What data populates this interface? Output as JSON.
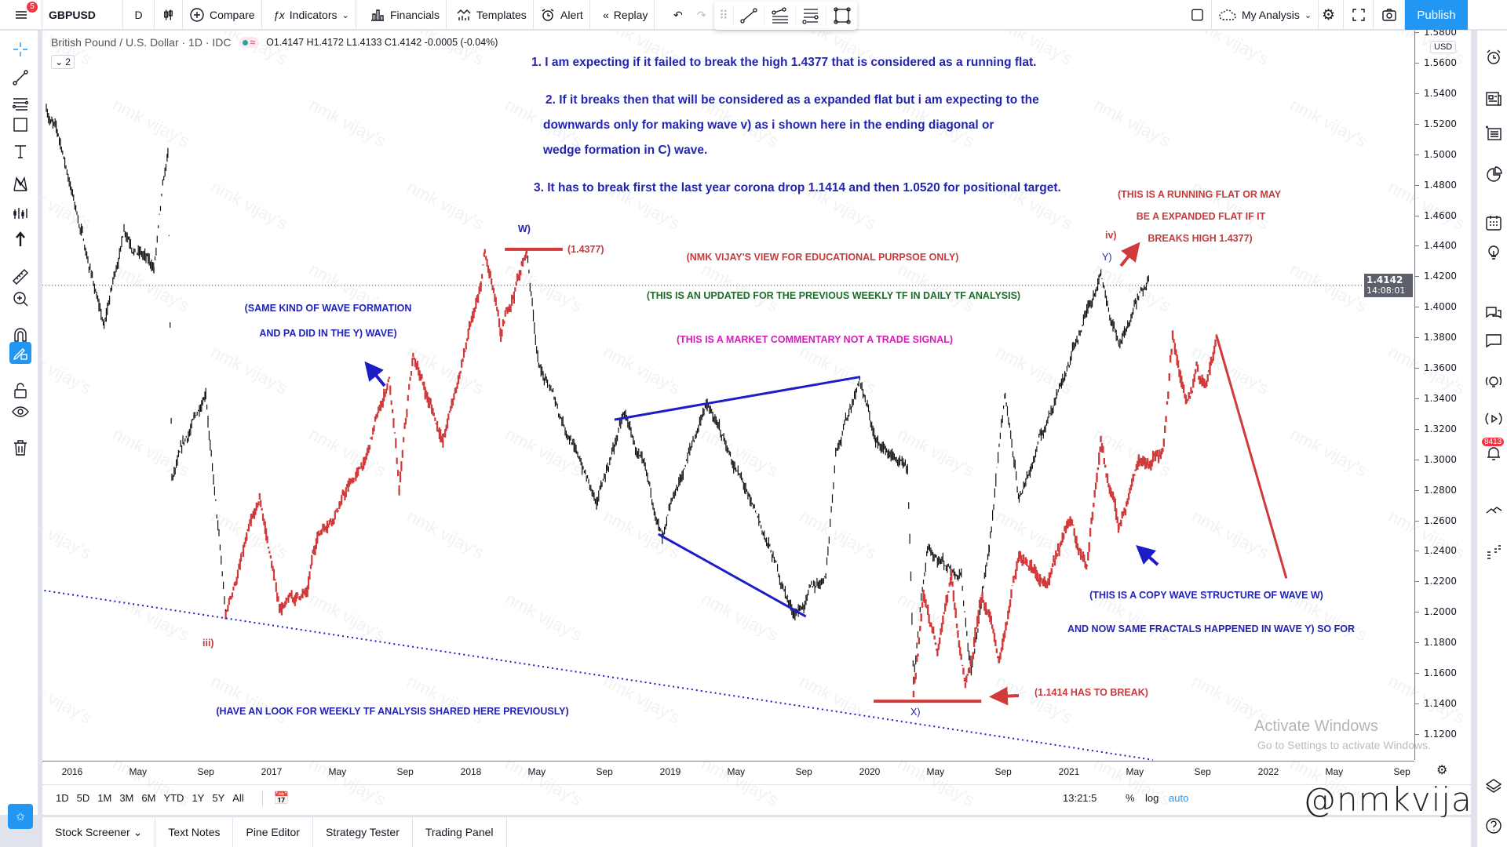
{
  "topbar": {
    "symbol": "GBPUSD",
    "interval": "D",
    "compare": "Compare",
    "indicators": "Indicators",
    "financials": "Financials",
    "templates": "Templates",
    "alert": "Alert",
    "replay": "Replay",
    "layout_name": "My Analysis",
    "publish": "Publish",
    "menu_badge": "5"
  },
  "legend": {
    "title": "British Pound / U.S. Dollar · 1D · IDC",
    "ohlc": "O1.4147 H1.4172 L1.4133 C1.4142 -0.0005 (-0.04%)",
    "collapse": "2"
  },
  "price_axis": {
    "currency": "USD",
    "ticks": [
      "1.5800",
      "1.5600",
      "1.5400",
      "1.5200",
      "1.5000",
      "1.4800",
      "1.4600",
      "1.4400",
      "1.4200",
      "1.4000",
      "1.3800",
      "1.3600",
      "1.3400",
      "1.3200",
      "1.3000",
      "1.2800",
      "1.2600",
      "1.2400",
      "1.2200",
      "1.2000",
      "1.1800",
      "1.1600",
      "1.1400",
      "1.1200"
    ],
    "current_price": "1.4142",
    "countdown": "14:08:01"
  },
  "time_axis": {
    "ticks": [
      {
        "label": "2016",
        "d": 2016.0
      },
      {
        "label": "May",
        "d": 2016.33
      },
      {
        "label": "Sep",
        "d": 2016.67
      },
      {
        "label": "2017",
        "d": 2017.0
      },
      {
        "label": "May",
        "d": 2017.33
      },
      {
        "label": "Sep",
        "d": 2017.67
      },
      {
        "label": "2018",
        "d": 2018.0
      },
      {
        "label": "May",
        "d": 2018.33
      },
      {
        "label": "Sep",
        "d": 2018.67
      },
      {
        "label": "2019",
        "d": 2019.0
      },
      {
        "label": "May",
        "d": 2019.33
      },
      {
        "label": "Sep",
        "d": 2019.67
      },
      {
        "label": "2020",
        "d": 2020.0
      },
      {
        "label": "May",
        "d": 2020.33
      },
      {
        "label": "Sep",
        "d": 2020.67
      },
      {
        "label": "2021",
        "d": 2021.0
      },
      {
        "label": "May",
        "d": 2021.33
      },
      {
        "label": "Sep",
        "d": 2021.67
      },
      {
        "label": "2022",
        "d": 2022.0
      },
      {
        "label": "May",
        "d": 2022.33
      },
      {
        "label": "Sep",
        "d": 2022.67
      }
    ]
  },
  "ranges": [
    "1D",
    "5D",
    "1M",
    "3M",
    "6M",
    "YTD",
    "1Y",
    "5Y",
    "All"
  ],
  "status": {
    "time": "13:21:5",
    "percent": "%",
    "log": "log",
    "auto": "auto"
  },
  "bottom_tabs": [
    "Stock Screener",
    "Text Notes",
    "Pine Editor",
    "Strategy Tester",
    "Trading Panel"
  ],
  "right_badge": "8413",
  "annotations": {
    "note1": "1. I am expecting if it failed to break the high 1.4377 that is considered as a running flat.",
    "note2a": "2. If it breaks then that will be considered as a expanded flat but i am expecting to the",
    "note2b": "downwards only for making wave v) as i shown here in the ending diagonal or",
    "note2c": "wedge formation in C) wave.",
    "note3": "3. It has to break first the last year corona drop 1.1414 and then 1.0520 for positional target.",
    "running1": "(THIS IS A RUNNING FLAT OR MAY",
    "running2": "BE A EXPANDED FLAT IF IT",
    "running3": "BREAKS HIGH 1.4377)",
    "iv": "iv)",
    "y": "Y)",
    "w": "W)",
    "x": "X)",
    "iii": "iii)",
    "high_label": "(1.4377)",
    "educational": "(NMK VIJAY'S VIEW FOR EDUCATIONAL PURPSOE ONLY)",
    "updated": "(THIS IS AN UPDATED FOR THE PREVIOUS WEEKLY TF  IN DAILY TF ANALYSIS)",
    "commentary": "(THIS IS A MARKET COMMENTARY NOT A TRADE SIGNAL)",
    "same1": "(SAME KIND OF WAVE FORMATION",
    "same2": "AND PA DID IN THE Y) WAVE)",
    "weekly": "(HAVE AN LOOK FOR WEEKLY TF ANALYSIS SHARED HERE PREVIOUSLY)",
    "break": "(1.1414 HAS TO BREAK)",
    "copy1": "(THIS IS A COPY WAVE STRUCTURE OF WAVE W)",
    "copy2": "AND NOW SAME FRACTALS HAPPENED IN WAVE Y) SO FOR"
  },
  "overlay": {
    "activate": "Activate Windows",
    "activate_sub": "Go to Settings to activate Windows.",
    "signature": "@nmkvijay",
    "watermark": "nmk vijay's"
  },
  "colors": {
    "accent": "#2196f3",
    "bull_overlay": "#d03a3a",
    "annotation_blue": "#2323b4",
    "line_blue": "#1d1dc8"
  },
  "chart_data": {
    "type": "line",
    "symbol": "GBPUSD",
    "ylim": [
      1.1,
      1.58
    ],
    "xlim": [
      2015.85,
      2022.75
    ],
    "price_path": [
      [
        2015.87,
        1.529
      ],
      [
        2015.93,
        1.513
      ],
      [
        2016.16,
        1.387
      ],
      [
        2016.26,
        1.45
      ],
      [
        2016.41,
        1.425
      ],
      [
        2016.48,
        1.501
      ],
      [
        2016.5,
        1.287
      ],
      [
        2016.67,
        1.343
      ],
      [
        2016.77,
        1.198
      ],
      [
        2016.94,
        1.274
      ],
      [
        2017.04,
        1.202
      ],
      [
        2017.18,
        1.214
      ],
      [
        2017.23,
        1.249
      ],
      [
        2017.47,
        1.299
      ],
      [
        2017.59,
        1.353
      ],
      [
        2017.64,
        1.28
      ],
      [
        2017.71,
        1.368
      ],
      [
        2017.86,
        1.312
      ],
      [
        2018.05,
        1.413
      ],
      [
        2018.07,
        1.435
      ],
      [
        2018.15,
        1.381
      ],
      [
        2018.28,
        1.437
      ],
      [
        2018.34,
        1.362
      ],
      [
        2018.53,
        1.305
      ],
      [
        2018.63,
        1.271
      ],
      [
        2018.77,
        1.331
      ],
      [
        2018.96,
        1.249
      ],
      [
        2019.18,
        1.337
      ],
      [
        2019.4,
        1.274
      ],
      [
        2019.62,
        1.198
      ],
      [
        2019.78,
        1.224
      ],
      [
        2019.83,
        1.306
      ],
      [
        2019.95,
        1.353
      ],
      [
        2020.03,
        1.312
      ],
      [
        2020.19,
        1.293
      ],
      [
        2020.22,
        1.156
      ],
      [
        2020.29,
        1.242
      ],
      [
        2020.46,
        1.224
      ],
      [
        2020.51,
        1.161
      ],
      [
        2020.6,
        1.242
      ],
      [
        2020.68,
        1.343
      ],
      [
        2020.75,
        1.274
      ],
      [
        2020.94,
        1.343
      ],
      [
        2021.16,
        1.422
      ],
      [
        2021.25,
        1.375
      ],
      [
        2021.4,
        1.419
      ]
    ],
    "highlight_range": [
      2016.77,
      2018.28
    ],
    "projection_path": [
      [
        2020.22,
        1.148
      ],
      [
        2020.27,
        1.211
      ],
      [
        2020.34,
        1.173
      ],
      [
        2020.41,
        1.224
      ],
      [
        2020.48,
        1.151
      ],
      [
        2020.56,
        1.211
      ],
      [
        2020.65,
        1.167
      ],
      [
        2020.75,
        1.236
      ],
      [
        2020.89,
        1.217
      ],
      [
        2021.01,
        1.261
      ],
      [
        2021.09,
        1.23
      ],
      [
        2021.16,
        1.312
      ],
      [
        2021.25,
        1.255
      ],
      [
        2021.35,
        1.299
      ],
      [
        2021.47,
        1.305
      ],
      [
        2021.52,
        1.381
      ],
      [
        2021.59,
        1.337
      ],
      [
        2021.64,
        1.362
      ],
      [
        2021.69,
        1.349
      ],
      [
        2021.74,
        1.381
      ]
    ],
    "forecast_line": [
      [
        2021.74,
        1.381
      ],
      [
        2022.09,
        1.222
      ]
    ],
    "lines": {
      "w_high": [
        [
          2018.17,
          1.4377
        ],
        [
          2018.46,
          1.4377
        ]
      ],
      "wedge_upper": [
        [
          2018.72,
          1.326
        ],
        [
          2019.95,
          1.354
        ]
      ],
      "wedge_lower": [
        [
          2018.94,
          1.251
        ],
        [
          2019.68,
          1.197
        ]
      ],
      "trendline": [
        [
          2015.86,
          1.214
        ],
        [
          2021.42,
          1.103
        ]
      ],
      "x_low": [
        [
          2020.02,
          1.1414
        ],
        [
          2020.56,
          1.1414
        ]
      ]
    },
    "last_price": 1.4142
  }
}
